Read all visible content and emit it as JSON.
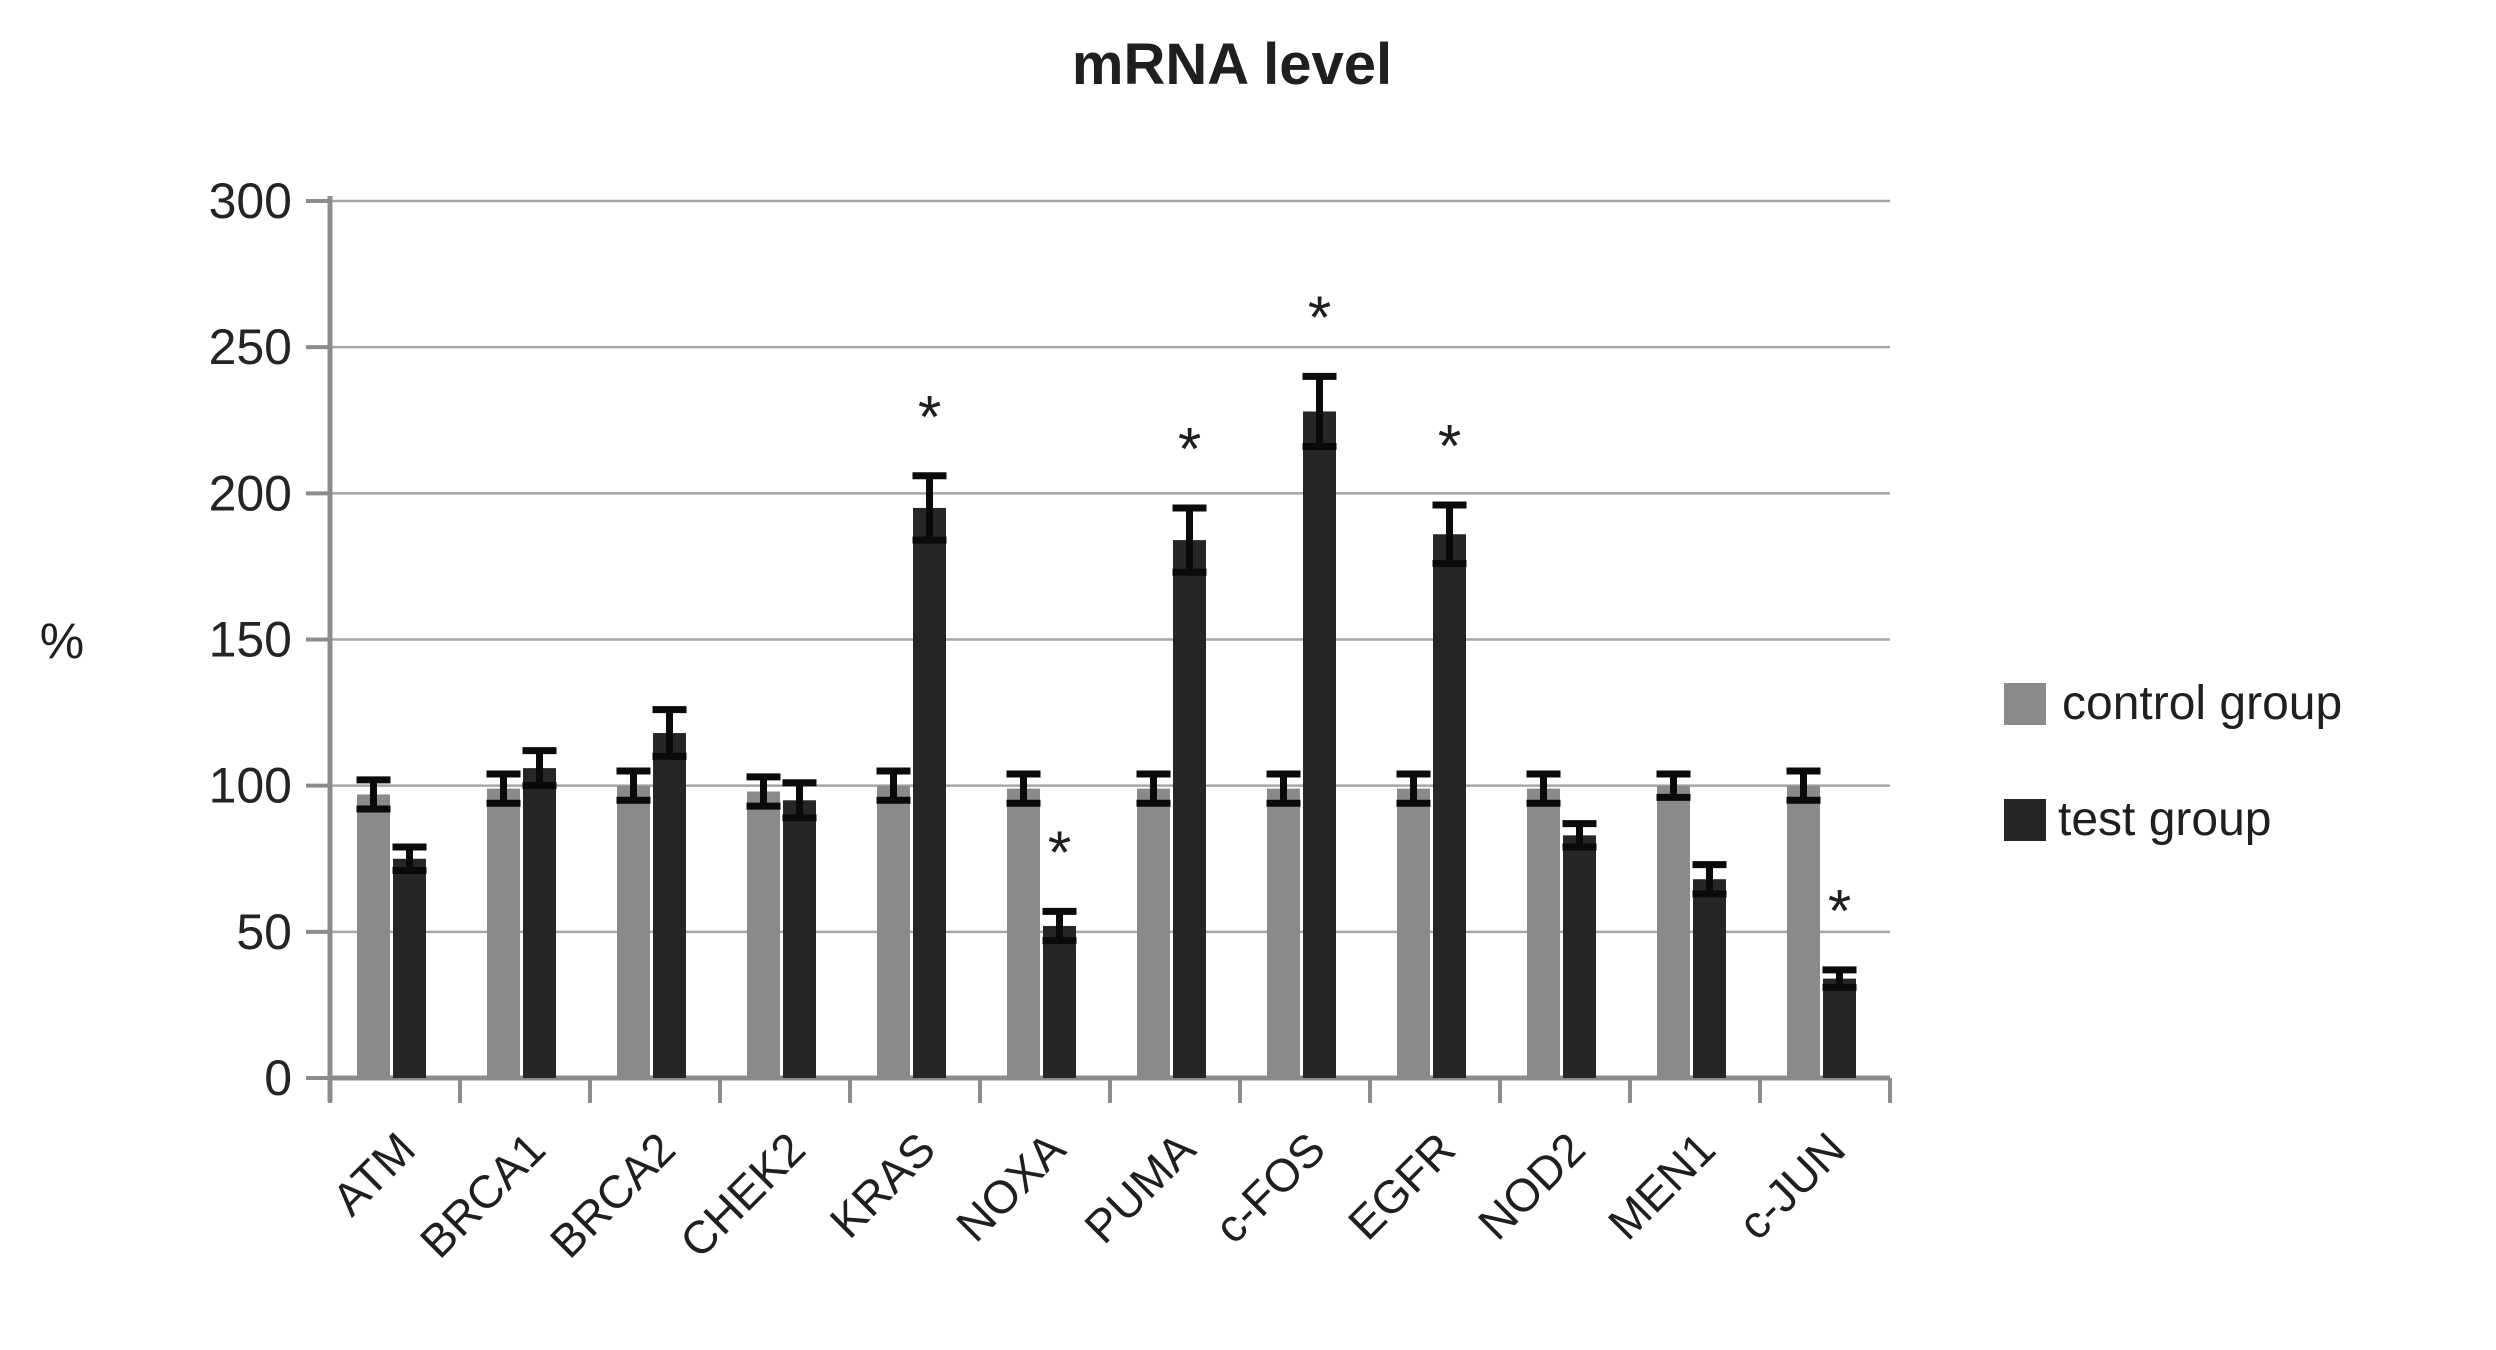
{
  "chart_data": {
    "type": "bar",
    "title": "mRNA level",
    "ylabel": "%",
    "ylim": [
      0,
      300
    ],
    "yticks": [
      0,
      50,
      100,
      150,
      200,
      250,
      300
    ],
    "grid": true,
    "legend_position": "right",
    "asterisk_glyph": "*",
    "categories": [
      "ATM",
      "BRCA1",
      "BRCA2",
      "CHEK2",
      "KRAS",
      "NOXA",
      "PUMA",
      "c-FOS",
      "EGFR",
      "NOD2",
      "MEN1",
      "c-JUN"
    ],
    "series": [
      {
        "name": "control group",
        "color": "#8a8a8a",
        "values": [
          97,
          99,
          100,
          98,
          100,
          99,
          99,
          99,
          99,
          99,
          100,
          100
        ],
        "errors": [
          5,
          5,
          5,
          5,
          5,
          5,
          5,
          5,
          5,
          5,
          4,
          5
        ]
      },
      {
        "name": "test group",
        "color": "#262626",
        "values": [
          75,
          106,
          118,
          95,
          195,
          52,
          184,
          228,
          186,
          83,
          68,
          34
        ],
        "errors": [
          4,
          6,
          8,
          6,
          11,
          5,
          11,
          12,
          10,
          4,
          5,
          3
        ]
      }
    ],
    "significant": [
      false,
      false,
      false,
      false,
      true,
      true,
      true,
      true,
      true,
      false,
      false,
      true
    ],
    "colors": {
      "gridline": "#a6a6a6",
      "axis": "#8c8c8c",
      "error_bar": "#0a0a0a",
      "text": "#1f1f1f"
    }
  }
}
